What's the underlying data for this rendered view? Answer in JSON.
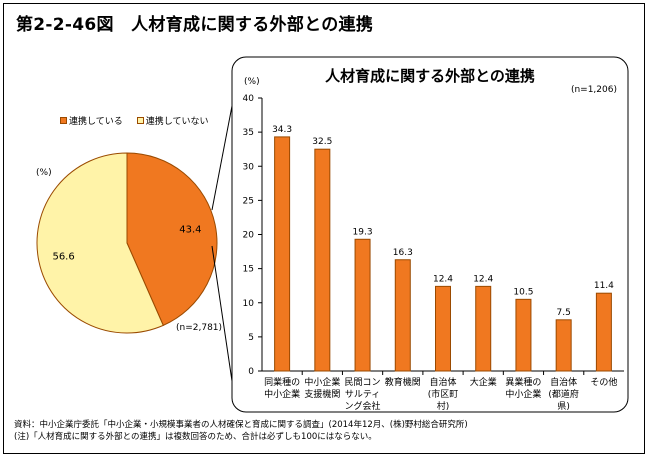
{
  "figure": {
    "title": "第2-2-46図　人材育成に関する外部との連携",
    "source": "資料：中小企業庁委託「中小企業・小規模事業者の人材確保と育成に関する調査」(2014年12月、(株)野村総合研究所)",
    "note": "(注)「人材育成に関する外部との連携」は複数回答のため、合計は必ずしも100にはならない。"
  },
  "colors": {
    "orange": "#f07820",
    "pale_yellow": "#fff3a8",
    "edge": "#9a4a00"
  },
  "chart_data": [
    {
      "type": "pie",
      "unit_label": "(%)",
      "n_label": "(n=2,781)",
      "legend_placement": "top",
      "legend": [
        "連携している",
        "連携していない"
      ],
      "slices": [
        {
          "name": "連携している",
          "value": 43.4,
          "label": "43.4",
          "color": "#f07820"
        },
        {
          "name": "連携していない",
          "value": 56.6,
          "label": "56.6",
          "color": "#fff3a8"
        }
      ]
    },
    {
      "type": "bar",
      "title": "人材育成に関する外部との連携",
      "unit_label": "(%)",
      "n_label": "(n=1,206)",
      "ylim": [
        0,
        40
      ],
      "yticks": [
        0,
        5,
        10,
        15,
        20,
        25,
        30,
        35,
        40
      ],
      "grid": false,
      "categories": [
        [
          "同業種の",
          "中小企業"
        ],
        [
          "中小企業",
          "支援機関"
        ],
        [
          "民間コン",
          "サルティ",
          "ング会社"
        ],
        [
          "教育機関"
        ],
        [
          "自治体",
          "(市区町",
          "村)"
        ],
        [
          "大企業"
        ],
        [
          "異業種の",
          "中小企業"
        ],
        [
          "自治体",
          "(都道府",
          "県)"
        ],
        [
          "その他"
        ]
      ],
      "values": [
        34.3,
        32.5,
        19.3,
        16.3,
        12.4,
        12.4,
        10.5,
        7.5,
        11.4
      ],
      "value_labels": [
        "34.3",
        "32.5",
        "19.3",
        "16.3",
        "12.4",
        "12.4",
        "10.5",
        "7.5",
        "11.4"
      ],
      "bar_color": "#f07820"
    }
  ]
}
